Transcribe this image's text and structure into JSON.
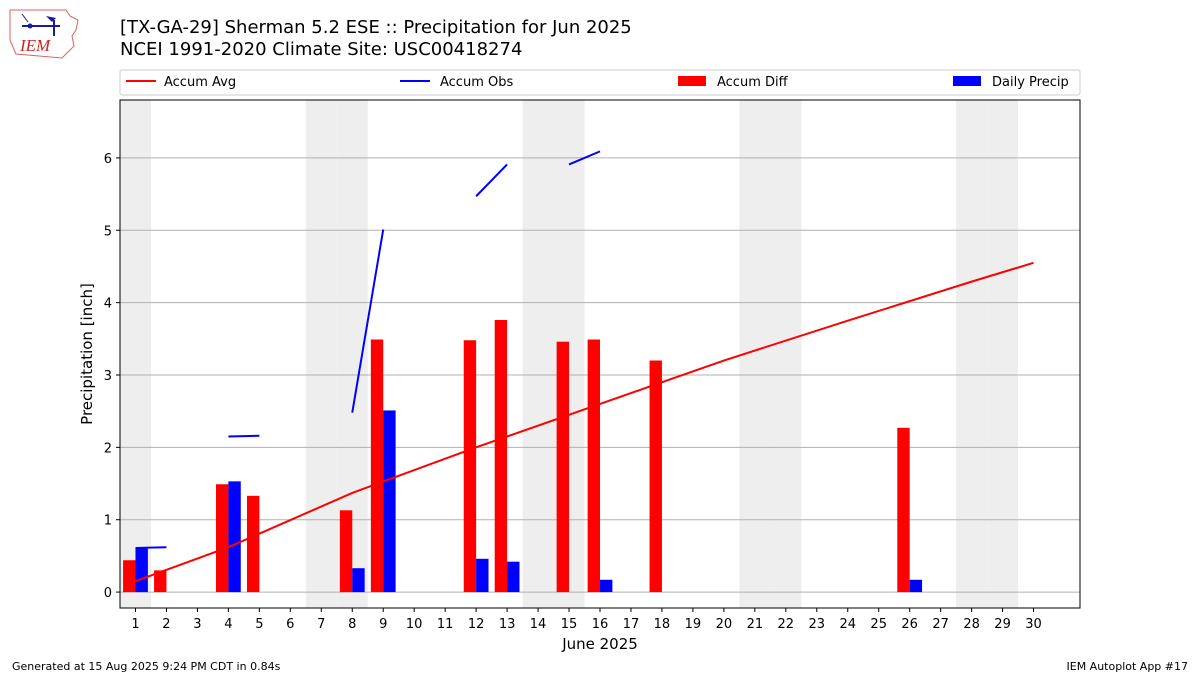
{
  "header": {
    "title_line1": "[TX-GA-29] Sherman 5.2 ESE :: Precipitation for Jun 2025",
    "title_line2": "NCEI 1991-2020 Climate Site: USC00418274",
    "logo_text": "IEM"
  },
  "footer": {
    "left": "Generated at 15 Aug 2025 9:24 PM CDT in 0.84s",
    "right": "IEM Autoplot App #17"
  },
  "colors": {
    "accum_avg": "#ff0000",
    "accum_obs": "#0000ff",
    "accum_diff": "#ff0000",
    "daily_precip": "#0000ff",
    "weekend_shade": "#eeeeee",
    "grid": "#b0b0b0"
  },
  "chart_data": {
    "type": "bar",
    "xlabel": "June 2025",
    "ylabel": "Precipitation [inch]",
    "xlim": [
      0.5,
      31.5
    ],
    "ylim": [
      -0.22,
      6.8
    ],
    "yticks": [
      0,
      1,
      2,
      3,
      4,
      5,
      6
    ],
    "days": [
      1,
      2,
      3,
      4,
      5,
      6,
      7,
      8,
      9,
      10,
      11,
      12,
      13,
      14,
      15,
      16,
      17,
      18,
      19,
      20,
      21,
      22,
      23,
      24,
      25,
      26,
      27,
      28,
      29,
      30
    ],
    "grid": "horizontal",
    "legend_position": "top",
    "shaded_days": [
      1,
      7,
      8,
      14,
      15,
      21,
      22,
      28,
      29
    ],
    "legend": [
      "Accum Avg",
      "Accum Obs",
      "Accum Diff",
      "Daily Precip"
    ],
    "series": [
      {
        "name": "Accum Avg",
        "kind": "line",
        "days": [
          1,
          4,
          8,
          12,
          16,
          20,
          24,
          28,
          30
        ],
        "values": [
          0.15,
          0.62,
          1.37,
          2.0,
          2.6,
          3.2,
          3.75,
          4.29,
          4.55
        ]
      },
      {
        "name": "Accum Obs",
        "kind": "line-segments",
        "segments": [
          {
            "days": [
              1,
              2
            ],
            "values": [
              0.61,
              0.62
            ]
          },
          {
            "days": [
              4,
              5
            ],
            "values": [
              2.15,
              2.16
            ]
          },
          {
            "days": [
              8,
              9
            ],
            "values": [
              2.48,
              5.01
            ]
          },
          {
            "days": [
              12,
              13
            ],
            "values": [
              5.47,
              5.91
            ]
          },
          {
            "days": [
              15,
              16
            ],
            "values": [
              5.91,
              6.09
            ]
          }
        ]
      },
      {
        "name": "Accum Diff",
        "kind": "bar",
        "days": [
          1,
          2,
          4,
          5,
          8,
          9,
          12,
          13,
          15,
          16,
          18,
          26
        ],
        "values": [
          0.44,
          0.3,
          1.49,
          1.33,
          1.13,
          3.49,
          3.48,
          3.76,
          3.46,
          3.49,
          3.2,
          2.27
        ]
      },
      {
        "name": "Daily Precip",
        "kind": "bar",
        "days": [
          1,
          4,
          8,
          9,
          12,
          13,
          16,
          26
        ],
        "values": [
          0.61,
          1.53,
          0.33,
          2.51,
          0.46,
          0.42,
          0.17,
          0.17
        ]
      }
    ]
  }
}
